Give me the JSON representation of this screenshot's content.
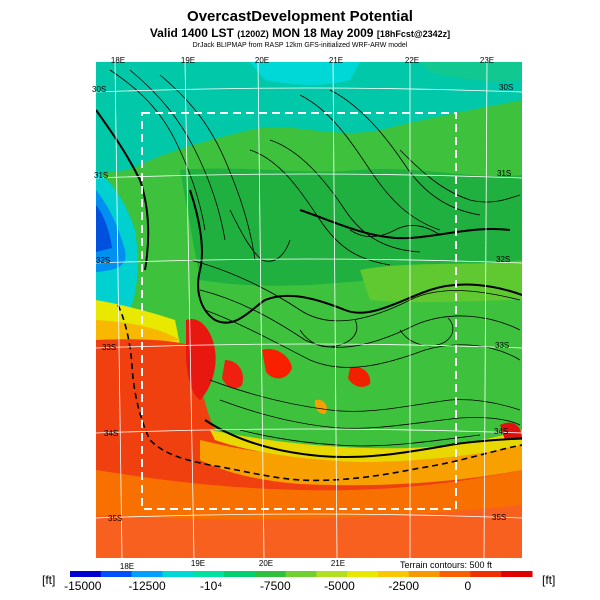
{
  "title": "OvercastDevelopment Potential",
  "subtitle": {
    "main": "Valid 1400 LST",
    "time_utc": "(1200Z)",
    "date": "MON 18 May 2009",
    "forecast": "[18hFcst@2342z]"
  },
  "credit": "DrJack BLIPMAP from RASP 12km GFS-initialized WRF-ARW model",
  "lon_labels_top": [
    "18E",
    "19E",
    "20E",
    "21E",
    "22E",
    "23E"
  ],
  "lon_labels_bottom": [
    "18E",
    "19E",
    "20E",
    "21E"
  ],
  "lat_labels_left": [
    "30S",
    "31S",
    "32S",
    "33S",
    "34S",
    "35S"
  ],
  "lat_labels_right": [
    "30S",
    "31S",
    "32S",
    "33S",
    "34S",
    "35S"
  ],
  "terrain_note": "Terrain contours: 500 ft",
  "colorbar": {
    "unit_left": "[ft]",
    "unit_right": "[ft]",
    "ticks": [
      "-15000",
      "-12500",
      "-10⁴",
      "-7500",
      "-5000",
      "-2500",
      "0"
    ],
    "tick_values": [
      -15000,
      -12500,
      -10000,
      -7500,
      -5000,
      -2500,
      0
    ],
    "range": [
      -15500,
      2500
    ],
    "colors": [
      "#0000d0",
      "#0050ff",
      "#00a0ff",
      "#00d8d8",
      "#00e0a0",
      "#00d070",
      "#30c040",
      "#70d030",
      "#b0e020",
      "#e8e800",
      "#f8c800",
      "#f89800",
      "#f86000",
      "#f03000",
      "#e00000"
    ]
  }
}
